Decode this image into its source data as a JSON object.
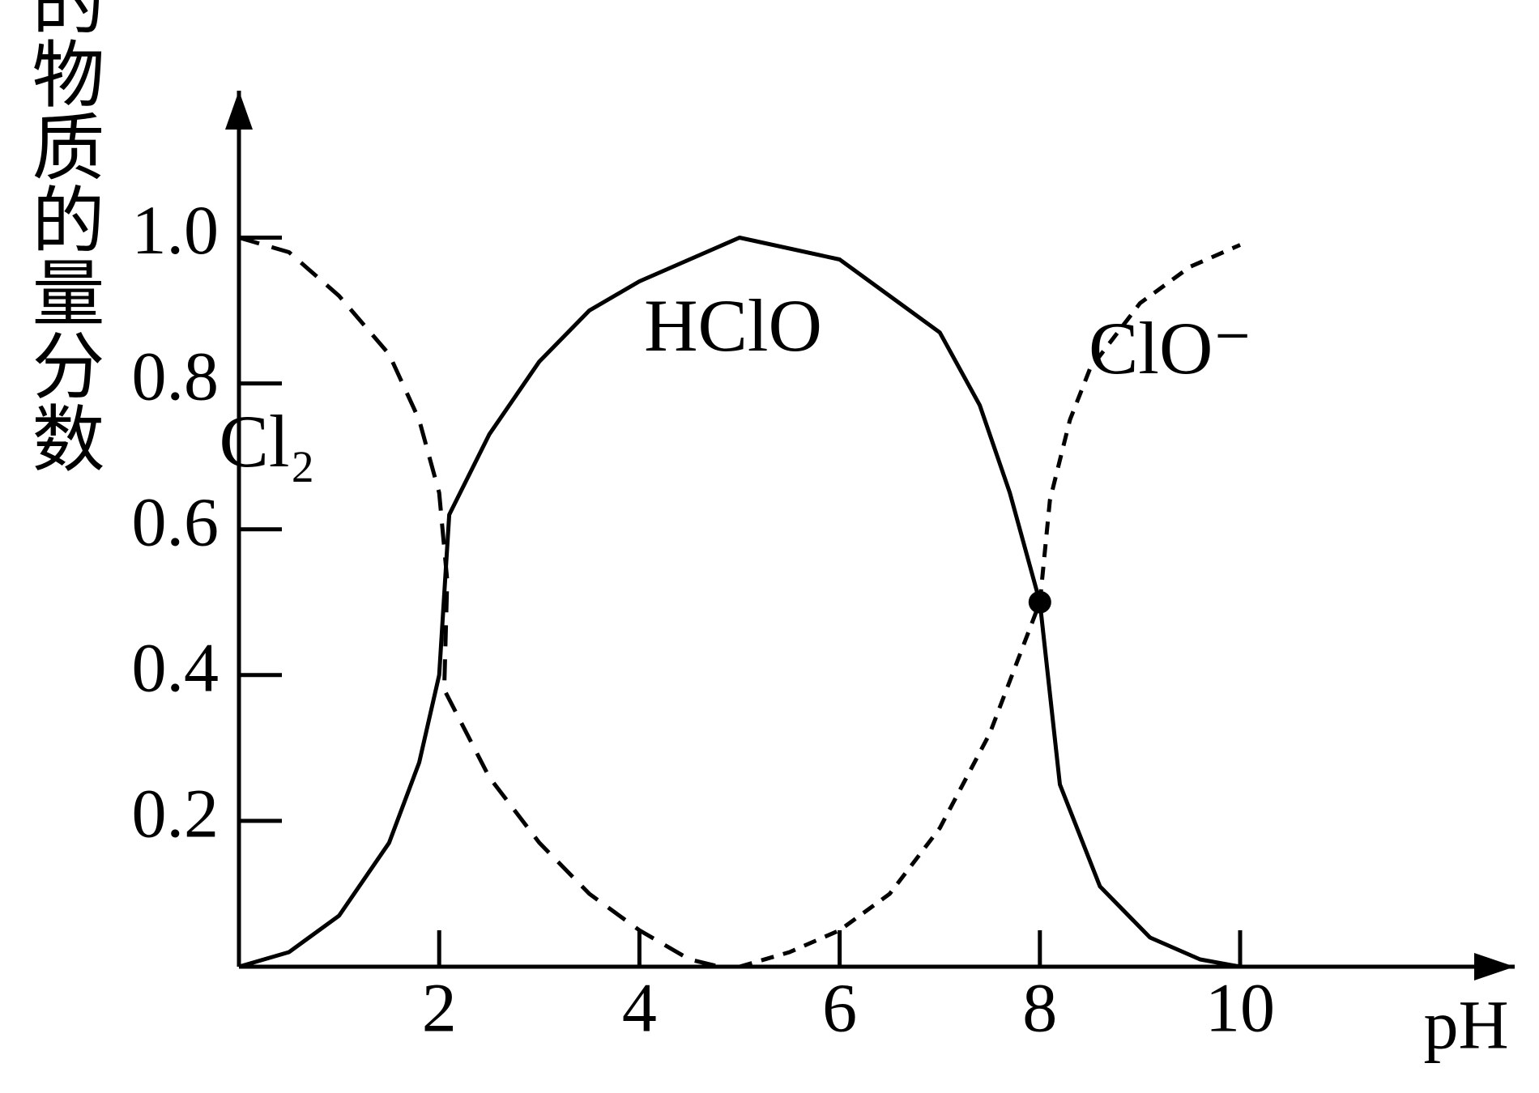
{
  "chart_data": {
    "type": "line",
    "ylabel": "微粒分布的物质的量分数",
    "xlabel": "pH",
    "xlim": [
      0,
      12.7
    ],
    "ylim": [
      0,
      1.2
    ],
    "xticks": [
      2,
      4,
      6,
      8,
      10
    ],
    "yticks": [
      0.2,
      0.4,
      0.6,
      0.8,
      {
        "value": 1,
        "label": "1.0"
      }
    ],
    "series": [
      {
        "name": "Cl₂",
        "color": "#000000",
        "dash": "dashed",
        "x": [
          0,
          0.5,
          1,
          1.5,
          1.8,
          2,
          2.08,
          2.05,
          2.5,
          3,
          3.5,
          4,
          4.5,
          4.8
        ],
        "values": [
          1.0,
          0.98,
          0.92,
          0.84,
          0.75,
          0.65,
          0.53,
          0.38,
          0.26,
          0.17,
          0.1,
          0.05,
          0.01,
          0
        ]
      },
      {
        "name": "HClO",
        "color": "#000000",
        "dash": "solid",
        "x": [
          0,
          0.5,
          1,
          1.5,
          1.8,
          2,
          2.1,
          2.5,
          3,
          3.5,
          4,
          4.5,
          5,
          6,
          7,
          7.4,
          7.7,
          8,
          8.2,
          8.6,
          9.1,
          9.6,
          10
        ],
        "values": [
          0,
          0.02,
          0.07,
          0.17,
          0.28,
          0.4,
          0.62,
          0.73,
          0.83,
          0.9,
          0.94,
          0.97,
          1.0,
          0.97,
          0.87,
          0.77,
          0.65,
          0.5,
          0.25,
          0.11,
          0.04,
          0.01,
          0
        ]
      },
      {
        "name": "ClO⁻",
        "color": "#000000",
        "dash": "dotted",
        "x": [
          5,
          5.5,
          6,
          6.5,
          7,
          7.5,
          8,
          8.1,
          8.3,
          8.5,
          9,
          9.5,
          10
        ],
        "values": [
          0,
          0.02,
          0.05,
          0.1,
          0.19,
          0.32,
          0.5,
          0.64,
          0.75,
          0.82,
          0.91,
          0.96,
          0.99
        ]
      }
    ],
    "marker": {
      "x": 8,
      "y": 0.5
    }
  }
}
